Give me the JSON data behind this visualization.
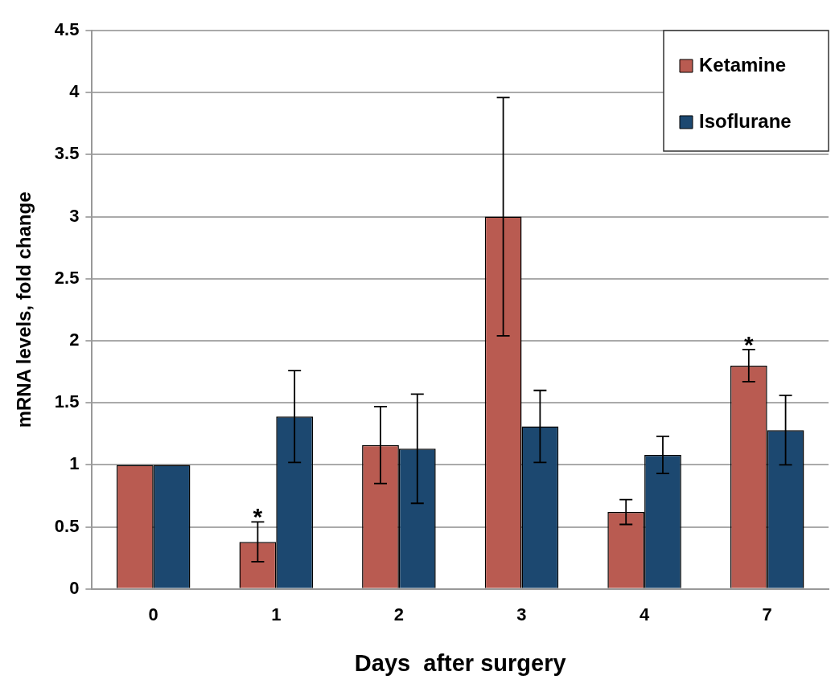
{
  "chart_data": {
    "type": "bar",
    "xlabel": "Days  after surgery",
    "ylabel": "mRNA levels, fold change",
    "categories": [
      "0",
      "1",
      "2",
      "3",
      "4",
      "7"
    ],
    "series": [
      {
        "name": "Ketamine",
        "color": "#b95b51",
        "values": [
          1,
          0.38,
          1.16,
          3.0,
          0.62,
          1.8
        ],
        "errors": [
          null,
          0.16,
          0.31,
          0.96,
          0.1,
          0.13
        ]
      },
      {
        "name": "Isoflurane",
        "color": "#1c4870",
        "values": [
          1,
          1.39,
          1.13,
          1.31,
          1.08,
          1.28
        ],
        "errors": [
          null,
          0.37,
          0.44,
          0.29,
          0.15,
          0.28
        ]
      }
    ],
    "ylim": [
      0,
      4.5
    ],
    "yticks": [
      0,
      0.5,
      1,
      1.5,
      2,
      2.5,
      3,
      3.5,
      4,
      4.5
    ],
    "grid": "y",
    "legend": "top right",
    "annotations": [
      {
        "text": "*",
        "x": "1",
        "y": 0.38
      },
      {
        "text": "*",
        "x": "7",
        "y": 1.8
      }
    ]
  }
}
